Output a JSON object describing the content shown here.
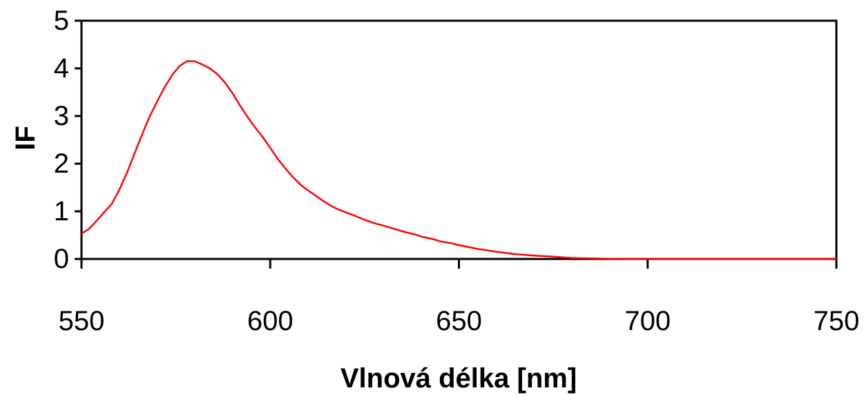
{
  "chart_data": {
    "type": "line",
    "xlabel": "Vlnová délka [nm]",
    "ylabel": "IF",
    "xlim": [
      550,
      750
    ],
    "ylim": [
      0,
      5
    ],
    "x_ticks": [
      550,
      600,
      650,
      700,
      750
    ],
    "y_ticks": [
      0,
      1,
      2,
      3,
      4,
      5
    ],
    "grid": false,
    "legend": "none",
    "line_color": "#ff0000",
    "series": [
      {
        "x": [
          550,
          552,
          554,
          556,
          557,
          558,
          560,
          562,
          564,
          566,
          568,
          570,
          572,
          574,
          576,
          578,
          580,
          582,
          584,
          586,
          588,
          590,
          592,
          594,
          596,
          598,
          600,
          602,
          604,
          606,
          608,
          610,
          612,
          614,
          616,
          618,
          620,
          622,
          625,
          628,
          630,
          632,
          635,
          638,
          640,
          643,
          645,
          648,
          650,
          655,
          660,
          665,
          670,
          675,
          678,
          680,
          685,
          690,
          695,
          700,
          710,
          720,
          730,
          740,
          750
        ],
        "y": [
          0.53,
          0.63,
          0.8,
          0.98,
          1.07,
          1.15,
          1.45,
          1.8,
          2.2,
          2.6,
          2.98,
          3.3,
          3.6,
          3.86,
          4.05,
          4.15,
          4.15,
          4.08,
          4.0,
          3.88,
          3.7,
          3.48,
          3.22,
          2.98,
          2.76,
          2.56,
          2.33,
          2.1,
          1.9,
          1.72,
          1.56,
          1.44,
          1.33,
          1.22,
          1.12,
          1.04,
          0.98,
          0.92,
          0.82,
          0.74,
          0.7,
          0.65,
          0.58,
          0.52,
          0.47,
          0.42,
          0.37,
          0.33,
          0.29,
          0.21,
          0.15,
          0.1,
          0.07,
          0.05,
          0.03,
          0.02,
          0.01,
          0.005,
          0.0,
          0.0,
          0.0,
          0.0,
          0.0,
          0.0,
          0.0
        ]
      }
    ]
  }
}
